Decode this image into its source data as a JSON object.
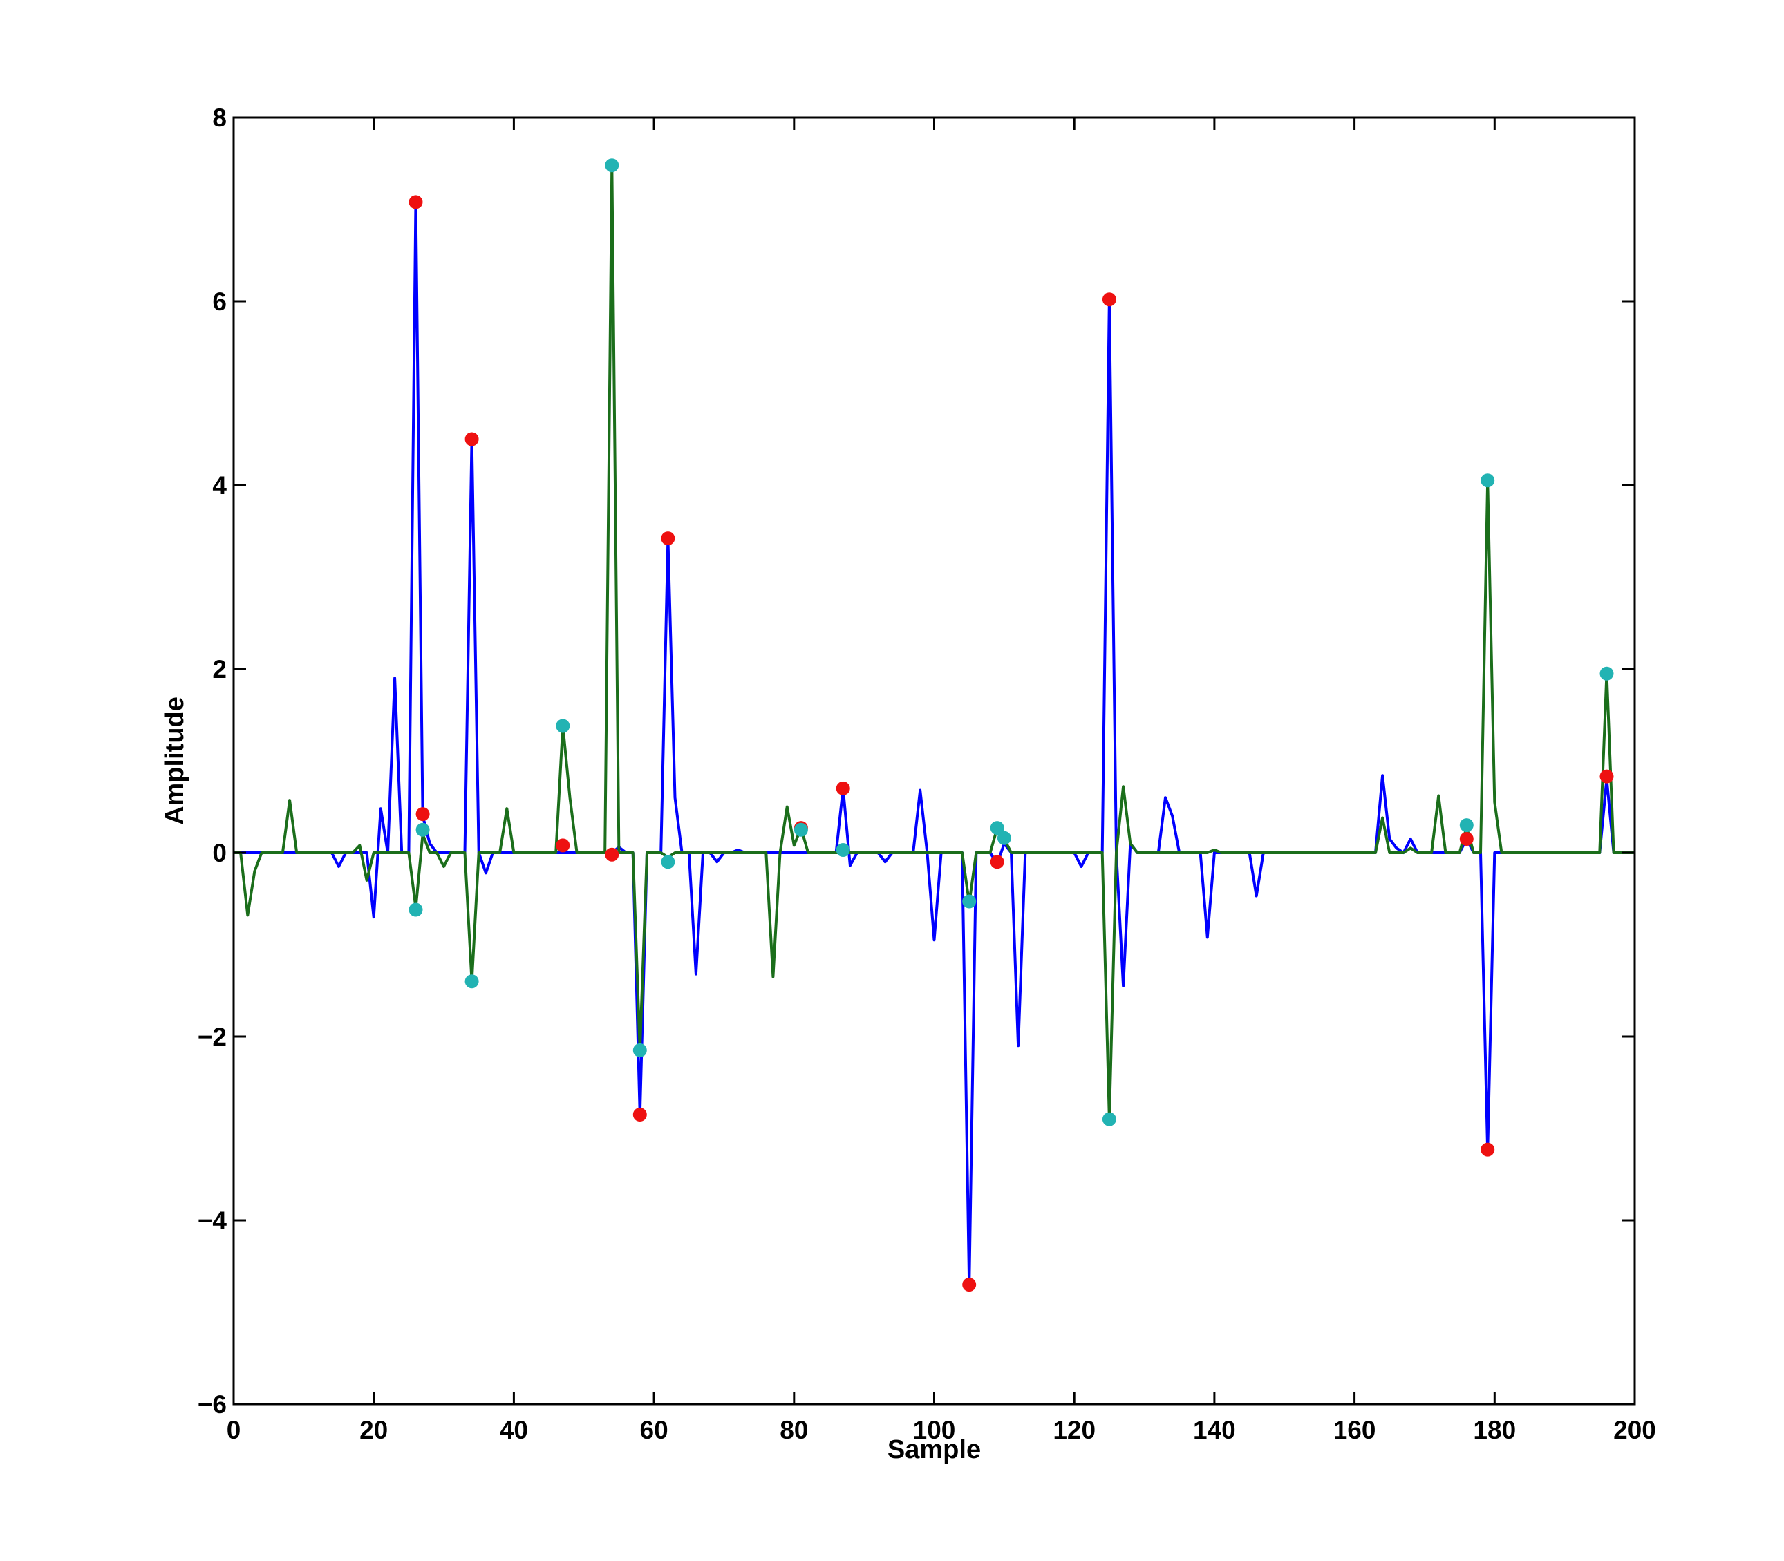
{
  "chart_data": {
    "type": "line",
    "title": "",
    "xlabel": "Sample",
    "ylabel": "Amplitude",
    "xlim": [
      0,
      200
    ],
    "ylim": [
      -6,
      8
    ],
    "xticks": [
      0,
      20,
      40,
      60,
      80,
      100,
      120,
      140,
      160,
      180,
      200
    ],
    "yticks": [
      -6,
      -4,
      -2,
      0,
      2,
      4,
      6,
      8
    ],
    "grid": false,
    "legend": "none",
    "series": [
      {
        "color": "#0000ff",
        "mark": "line",
        "points": [
          [
            0,
            0
          ],
          [
            14,
            0
          ],
          [
            15,
            -0.15
          ],
          [
            16,
            0
          ],
          [
            19,
            0
          ],
          [
            20,
            -0.7
          ],
          [
            21,
            0.48
          ],
          [
            22,
            0
          ],
          [
            23,
            1.9
          ],
          [
            24,
            0
          ],
          [
            25,
            0
          ],
          [
            26,
            7.08
          ],
          [
            27,
            0.4
          ],
          [
            28,
            0.1
          ],
          [
            29,
            0
          ],
          [
            33,
            0
          ],
          [
            34,
            4.5
          ],
          [
            35,
            0
          ],
          [
            36,
            -0.22
          ],
          [
            37,
            0
          ],
          [
            53,
            0
          ],
          [
            54,
            0
          ],
          [
            55,
            0.06
          ],
          [
            56,
            0
          ],
          [
            57,
            0
          ],
          [
            58,
            -2.85
          ],
          [
            59,
            0
          ],
          [
            61,
            0
          ],
          [
            62,
            3.42
          ],
          [
            63,
            0.6
          ],
          [
            64,
            0
          ],
          [
            65,
            0
          ],
          [
            66,
            -1.32
          ],
          [
            67,
            0
          ],
          [
            68,
            0
          ],
          [
            69,
            -0.1
          ],
          [
            70,
            0
          ],
          [
            71,
            0
          ],
          [
            72,
            0.03
          ],
          [
            73,
            0
          ],
          [
            86,
            0
          ],
          [
            87,
            0.7
          ],
          [
            88,
            -0.14
          ],
          [
            89,
            0
          ],
          [
            92,
            0
          ],
          [
            93,
            -0.1
          ],
          [
            94,
            0
          ],
          [
            96,
            0
          ],
          [
            97,
            0
          ],
          [
            98,
            0.68
          ],
          [
            99,
            0
          ],
          [
            100,
            -0.95
          ],
          [
            101,
            0
          ],
          [
            104,
            0
          ],
          [
            105,
            -4.7
          ],
          [
            106,
            0
          ],
          [
            108,
            0
          ],
          [
            109,
            -0.12
          ],
          [
            110,
            0.1
          ],
          [
            111,
            0
          ],
          [
            112,
            -2.1
          ],
          [
            113,
            0
          ],
          [
            120,
            0
          ],
          [
            121,
            -0.15
          ],
          [
            122,
            0
          ],
          [
            124,
            0
          ],
          [
            125,
            6.02
          ],
          [
            126,
            0
          ],
          [
            127,
            -1.45
          ],
          [
            128,
            0.1
          ],
          [
            129,
            0
          ],
          [
            132,
            0
          ],
          [
            133,
            0.6
          ],
          [
            134,
            0.4
          ],
          [
            135,
            0
          ],
          [
            138,
            0
          ],
          [
            139,
            -0.92
          ],
          [
            140,
            0
          ],
          [
            145,
            0
          ],
          [
            146,
            -0.47
          ],
          [
            147,
            0
          ],
          [
            163,
            0
          ],
          [
            164,
            0.84
          ],
          [
            165,
            0.15
          ],
          [
            166,
            0.05
          ],
          [
            167,
            0
          ],
          [
            168,
            0.15
          ],
          [
            169,
            0
          ],
          [
            175,
            0
          ],
          [
            176,
            0.15
          ],
          [
            177,
            0
          ],
          [
            178,
            0
          ],
          [
            179,
            -3.25
          ],
          [
            180,
            0
          ],
          [
            195,
            0
          ],
          [
            196,
            0.8
          ],
          [
            197,
            0
          ],
          [
            200,
            0
          ]
        ]
      },
      {
        "color": "#1b6e1b",
        "mark": "line",
        "points": [
          [
            0,
            0
          ],
          [
            1,
            0
          ],
          [
            2,
            -0.68
          ],
          [
            3,
            -0.2
          ],
          [
            4,
            0
          ],
          [
            7,
            0
          ],
          [
            8,
            0.57
          ],
          [
            9,
            0
          ],
          [
            17,
            0
          ],
          [
            18,
            0.08
          ],
          [
            19,
            -0.3
          ],
          [
            20,
            0
          ],
          [
            25,
            0
          ],
          [
            26,
            -0.6
          ],
          [
            27,
            0.2
          ],
          [
            28,
            0
          ],
          [
            29,
            0
          ],
          [
            30,
            -0.15
          ],
          [
            31,
            0
          ],
          [
            33,
            0
          ],
          [
            34,
            -1.4
          ],
          [
            35,
            0
          ],
          [
            38,
            0
          ],
          [
            39,
            0.48
          ],
          [
            40,
            0
          ],
          [
            46,
            0
          ],
          [
            47,
            1.38
          ],
          [
            48,
            0.6
          ],
          [
            49,
            0
          ],
          [
            53,
            0
          ],
          [
            54,
            7.48
          ],
          [
            55,
            0
          ],
          [
            57,
            0
          ],
          [
            58,
            -2.15
          ],
          [
            59,
            0
          ],
          [
            61,
            0
          ],
          [
            62,
            -0.05
          ],
          [
            63,
            0
          ],
          [
            76,
            0
          ],
          [
            77,
            -1.35
          ],
          [
            78,
            0
          ],
          [
            79,
            0.5
          ],
          [
            80,
            0.08
          ],
          [
            81,
            0.27
          ],
          [
            82,
            0
          ],
          [
            104,
            0
          ],
          [
            105,
            -0.55
          ],
          [
            106,
            0
          ],
          [
            108,
            0
          ],
          [
            109,
            0.27
          ],
          [
            110,
            0.15
          ],
          [
            111,
            0
          ],
          [
            124,
            0
          ],
          [
            125,
            -2.9
          ],
          [
            126,
            0
          ],
          [
            127,
            0.72
          ],
          [
            128,
            0.1
          ],
          [
            129,
            0
          ],
          [
            139,
            0
          ],
          [
            140,
            0.03
          ],
          [
            141,
            0
          ],
          [
            163,
            0
          ],
          [
            164,
            0.38
          ],
          [
            165,
            0
          ],
          [
            167,
            0
          ],
          [
            168,
            0.05
          ],
          [
            169,
            0
          ],
          [
            171,
            0
          ],
          [
            172,
            0.62
          ],
          [
            173,
            0
          ],
          [
            175,
            0
          ],
          [
            176,
            0.28
          ],
          [
            177,
            0
          ],
          [
            178,
            0
          ],
          [
            179,
            4.05
          ],
          [
            180,
            0.55
          ],
          [
            181,
            0
          ],
          [
            195,
            0
          ],
          [
            196,
            1.95
          ],
          [
            197,
            0
          ],
          [
            200,
            0
          ]
        ]
      },
      {
        "color": "#ee1111",
        "mark": "marker",
        "points": [
          [
            26,
            7.08
          ],
          [
            27,
            0.42
          ],
          [
            34,
            4.5
          ],
          [
            47,
            0.08
          ],
          [
            54,
            -0.02
          ],
          [
            58,
            -2.85
          ],
          [
            62,
            3.42
          ],
          [
            81,
            0.27
          ],
          [
            87,
            0.7
          ],
          [
            105,
            -4.7
          ],
          [
            109,
            -0.1
          ],
          [
            125,
            6.02
          ],
          [
            176,
            0.15
          ],
          [
            179,
            -3.23
          ],
          [
            196,
            0.83
          ]
        ]
      },
      {
        "color": "#22b3b3",
        "mark": "marker",
        "points": [
          [
            26,
            -0.62
          ],
          [
            27,
            0.25
          ],
          [
            34,
            -1.4
          ],
          [
            47,
            1.38
          ],
          [
            54,
            7.48
          ],
          [
            58,
            -2.15
          ],
          [
            62,
            -0.1
          ],
          [
            81,
            0.25
          ],
          [
            87,
            0.03
          ],
          [
            105,
            -0.53
          ],
          [
            109,
            0.27
          ],
          [
            110,
            0.16
          ],
          [
            125,
            -2.9
          ],
          [
            176,
            0.3
          ],
          [
            179,
            4.05
          ],
          [
            196,
            1.95
          ]
        ]
      }
    ]
  }
}
